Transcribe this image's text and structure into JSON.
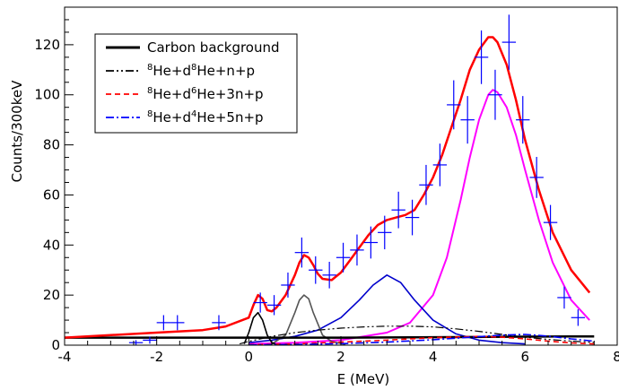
{
  "chart_data": {
    "type": "line",
    "xlabel": "E (MeV)",
    "ylabel": "Counts/300keV",
    "xlim": [
      -4,
      8
    ],
    "ylim": [
      0,
      135
    ],
    "x_ticks": [
      -4,
      -2,
      0,
      2,
      4,
      6,
      8
    ],
    "y_ticks": [
      0,
      20,
      40,
      60,
      80,
      100,
      120
    ],
    "grid": false,
    "legend_placement": "top-left",
    "legend": [
      {
        "key": "carbon",
        "parts": [
          {
            "t": "Carbon background"
          }
        ],
        "color": "#000000",
        "dash": "solid"
      },
      {
        "key": "he8np",
        "parts": [
          {
            "s": "8"
          },
          {
            "t": "He+d"
          },
          {
            "gap": true
          },
          {
            "s": "8"
          },
          {
            "t": "He+n+p"
          }
        ],
        "color": "#000000",
        "dash": "dashdotdot"
      },
      {
        "key": "he6",
        "parts": [
          {
            "s": "8"
          },
          {
            "t": "He+d"
          },
          {
            "gap": true
          },
          {
            "s": "6"
          },
          {
            "t": "He+3n+p"
          }
        ],
        "color": "#ff0000",
        "dash": "dashed"
      },
      {
        "key": "he4",
        "parts": [
          {
            "s": "8"
          },
          {
            "t": "He+d"
          },
          {
            "gap": true
          },
          {
            "s": "4"
          },
          {
            "t": "He+5n+p"
          }
        ],
        "color": "#0000ff",
        "dash": "dashdot"
      }
    ],
    "data_points": [
      {
        "x": -2.45,
        "y": 1,
        "yerr": 1
      },
      {
        "x": -2.15,
        "y": 2,
        "yerr": 1.4
      },
      {
        "x": -1.85,
        "y": 9,
        "yerr": 3
      },
      {
        "x": -1.55,
        "y": 9,
        "yerr": 3
      },
      {
        "x": -0.65,
        "y": 9,
        "yerr": 3
      },
      {
        "x": 0.25,
        "y": 17,
        "yerr": 4
      },
      {
        "x": 0.55,
        "y": 16,
        "yerr": 4
      },
      {
        "x": 0.85,
        "y": 24,
        "yerr": 5
      },
      {
        "x": 1.15,
        "y": 37,
        "yerr": 6
      },
      {
        "x": 1.45,
        "y": 30,
        "yerr": 5.5
      },
      {
        "x": 1.75,
        "y": 28,
        "yerr": 5.3
      },
      {
        "x": 2.05,
        "y": 35,
        "yerr": 5.9
      },
      {
        "x": 2.35,
        "y": 38,
        "yerr": 6.2
      },
      {
        "x": 2.65,
        "y": 41,
        "yerr": 6.4
      },
      {
        "x": 2.95,
        "y": 45,
        "yerr": 6.7
      },
      {
        "x": 3.25,
        "y": 54,
        "yerr": 7.3
      },
      {
        "x": 3.55,
        "y": 51,
        "yerr": 7.1
      },
      {
        "x": 3.85,
        "y": 64,
        "yerr": 8
      },
      {
        "x": 4.15,
        "y": 72,
        "yerr": 8.5
      },
      {
        "x": 4.45,
        "y": 96,
        "yerr": 9.8
      },
      {
        "x": 4.75,
        "y": 90,
        "yerr": 9.5
      },
      {
        "x": 5.05,
        "y": 115,
        "yerr": 10.7
      },
      {
        "x": 5.35,
        "y": 100,
        "yerr": 10
      },
      {
        "x": 5.65,
        "y": 121,
        "yerr": 11
      },
      {
        "x": 5.95,
        "y": 90,
        "yerr": 9.5
      },
      {
        "x": 6.25,
        "y": 67,
        "yerr": 8.2
      },
      {
        "x": 6.55,
        "y": 49,
        "yerr": 7
      },
      {
        "x": 6.85,
        "y": 19,
        "yerr": 4.4
      },
      {
        "x": 7.15,
        "y": 11,
        "yerr": 3.3
      }
    ],
    "curves": [
      {
        "key": "magenta_peak",
        "color": "#ff00ff",
        "dash": "solid",
        "width": 2,
        "x": [
          0.0,
          1.0,
          2.0,
          3.0,
          3.5,
          4.0,
          4.3,
          4.6,
          4.8,
          5.0,
          5.2,
          5.3,
          5.4,
          5.6,
          5.8,
          6.0,
          6.3,
          6.6,
          7.0,
          7.4
        ],
        "y": [
          0.5,
          1,
          2,
          5,
          9,
          20,
          35,
          58,
          75,
          90,
          100,
          102,
          101,
          95,
          84,
          70,
          50,
          33,
          18,
          10
        ]
      },
      {
        "key": "blue_peak",
        "color": "#0000cc",
        "dash": "solid",
        "width": 1.6,
        "x": [
          0.0,
          0.5,
          1.0,
          1.5,
          2.0,
          2.4,
          2.7,
          3.0,
          3.3,
          3.6,
          4.0,
          4.5,
          5.0,
          5.5,
          6.0
        ],
        "y": [
          1,
          2,
          3.5,
          6,
          11,
          18,
          24,
          28,
          25,
          18,
          10,
          4.5,
          2,
          1,
          0.5
        ]
      },
      {
        "key": "grey_peak",
        "color": "#555555",
        "dash": "solid",
        "width": 1.6,
        "x": [
          0.5,
          0.8,
          1.0,
          1.1,
          1.2,
          1.3,
          1.4,
          1.6,
          1.8,
          2.1
        ],
        "y": [
          0.5,
          4,
          13,
          18,
          20,
          18.5,
          13,
          4,
          1.5,
          0.3
        ]
      },
      {
        "key": "black_peak",
        "color": "#000000",
        "dash": "solid",
        "width": 1.6,
        "x": [
          -0.1,
          0.0,
          0.1,
          0.2,
          0.3,
          0.4,
          0.5,
          0.6
        ],
        "y": [
          0.5,
          5,
          11,
          13,
          10,
          4,
          1,
          0.2
        ]
      },
      {
        "key": "carbon",
        "color": "#000000",
        "dash": "solid",
        "width": 2.5,
        "x": [
          -4,
          -2,
          0,
          2,
          4,
          6,
          7.5
        ],
        "y": [
          3,
          3,
          3,
          3,
          3.2,
          3.4,
          3.5
        ]
      },
      {
        "key": "he8np",
        "color": "#000000",
        "dash": "dashdotdot",
        "width": 1.2,
        "x": [
          -0.2,
          0.0,
          0.5,
          1.0,
          1.5,
          2.0,
          2.5,
          3.0,
          3.5,
          4.0,
          4.5,
          5.0,
          5.5,
          6.0,
          6.5,
          7.0,
          7.5
        ],
        "y": [
          0.5,
          1.5,
          3.5,
          5,
          6,
          6.8,
          7.3,
          7.6,
          7.6,
          7.3,
          6.5,
          5.5,
          4.3,
          3.2,
          2.3,
          1.6,
          1.1
        ]
      },
      {
        "key": "he6",
        "color": "#ff0000",
        "dash": "dashed",
        "width": 1.6,
        "x": [
          0.0,
          1.0,
          2.0,
          3.0,
          4.0,
          5.0,
          5.5,
          6.0,
          6.5,
          7.0,
          7.5
        ],
        "y": [
          0.2,
          0.5,
          1.2,
          2.0,
          3.0,
          3.5,
          3.2,
          2.5,
          1.6,
          0.9,
          0.5
        ]
      },
      {
        "key": "he4",
        "color": "#0000ff",
        "dash": "dashdot",
        "width": 1.6,
        "x": [
          0.0,
          1.0,
          2.0,
          3.0,
          4.0,
          5.0,
          5.5,
          6.0,
          6.5,
          7.0,
          7.5
        ],
        "y": [
          0.1,
          0.3,
          0.6,
          1.2,
          2.2,
          3.4,
          4.0,
          4.3,
          3.6,
          2.5,
          1.6
        ]
      },
      {
        "key": "total_fit",
        "color": "#ff0000",
        "dash": "solid",
        "width": 2.5,
        "x": [
          -4.0,
          -3.0,
          -2.0,
          -1.0,
          -0.5,
          0.0,
          0.1,
          0.2,
          0.3,
          0.4,
          0.5,
          0.6,
          0.8,
          1.0,
          1.1,
          1.2,
          1.3,
          1.4,
          1.5,
          1.6,
          1.8,
          2.0,
          2.2,
          2.4,
          2.6,
          2.8,
          3.0,
          3.2,
          3.4,
          3.6,
          3.8,
          4.0,
          4.2,
          4.4,
          4.6,
          4.8,
          5.0,
          5.2,
          5.3,
          5.4,
          5.6,
          5.8,
          6.0,
          6.3,
          6.6,
          7.0,
          7.4
        ],
        "y": [
          3,
          4,
          5,
          6,
          7.5,
          11,
          16,
          20,
          18.5,
          14,
          13.5,
          15,
          20,
          28,
          33,
          36,
          35,
          32,
          28.5,
          26.5,
          26,
          29,
          34,
          39,
          44,
          48,
          50,
          51,
          52,
          54,
          60,
          67,
          76,
          87,
          98,
          110,
          118,
          123,
          123,
          121,
          112,
          98,
          82,
          62,
          45,
          30,
          21
        ]
      }
    ]
  }
}
